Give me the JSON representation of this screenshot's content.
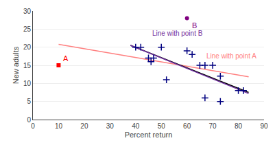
{
  "chart_data": {
    "type": "scatter",
    "xlabel": "Percent return",
    "ylabel": "New adults",
    "xlim": [
      0,
      90
    ],
    "ylim": [
      0,
      30
    ],
    "xticks": [
      0,
      10,
      20,
      30,
      40,
      50,
      60,
      70,
      80,
      90
    ],
    "yticks": [
      0,
      5,
      10,
      15,
      20,
      25,
      30
    ],
    "grid": "y",
    "series": [
      {
        "type": "line",
        "color": "#ff8080",
        "x": [
          10,
          84
        ],
        "values": [
          20.8,
          11.8
        ]
      },
      {
        "type": "line",
        "color": "#000000",
        "x": [
          38,
          84
        ],
        "values": [
          20.5,
          7.5
        ]
      },
      {
        "type": "line",
        "color": "#7030a0",
        "x": [
          38,
          84
        ],
        "values": [
          20.5,
          7.2
        ]
      },
      {
        "type": "scatter",
        "marker": "cross",
        "color": "#000080",
        "x": [
          40,
          42,
          45,
          46,
          47,
          50,
          52,
          60,
          62,
          65,
          67,
          67,
          70,
          73,
          73,
          80,
          82
        ],
        "values": [
          20,
          20,
          17,
          16,
          17,
          20,
          11,
          19,
          18,
          15,
          15,
          6,
          15,
          5,
          12,
          8,
          8
        ]
      },
      {
        "type": "scatter",
        "marker": "square",
        "color": "#ff0000",
        "x": [
          10
        ],
        "values": [
          15
        ]
      },
      {
        "type": "scatter",
        "marker": "circle",
        "color": "#800080",
        "x": [
          60
        ],
        "values": [
          28
        ]
      }
    ],
    "annotations": [
      {
        "text": "A",
        "x": 10,
        "y": 15,
        "color": "#ff0000",
        "anchor": "point_above"
      },
      {
        "text": "B",
        "x": 60,
        "y": 28,
        "color": "#800080",
        "anchor": "point_below"
      },
      {
        "text": "Line with point B",
        "x": 46,
        "y": 22.5,
        "color": "#7030a0",
        "anchor": "text"
      },
      {
        "text": "Line with point A",
        "x": 67,
        "y": 16.2,
        "color": "#ff8080",
        "anchor": "text"
      }
    ]
  }
}
